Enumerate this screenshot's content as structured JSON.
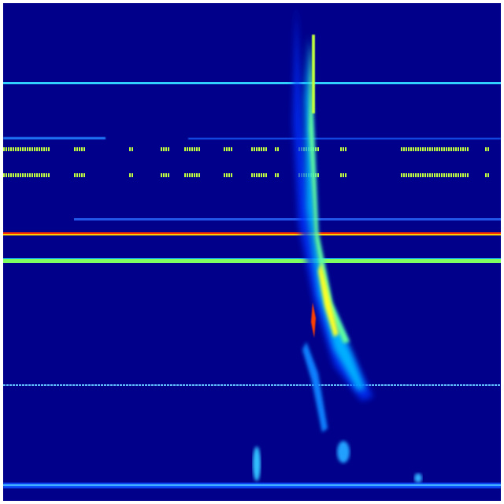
{
  "view": {
    "type": "spectrogram-waterfall",
    "colormap": "jet"
  },
  "colors": {
    "background": "#00008a",
    "low": "#0000ff",
    "mid_low": "#00bfff",
    "mid": "#00ffff",
    "mid_high": "#7fff7f",
    "high": "#ffff00",
    "peak": "#ff0000"
  }
}
